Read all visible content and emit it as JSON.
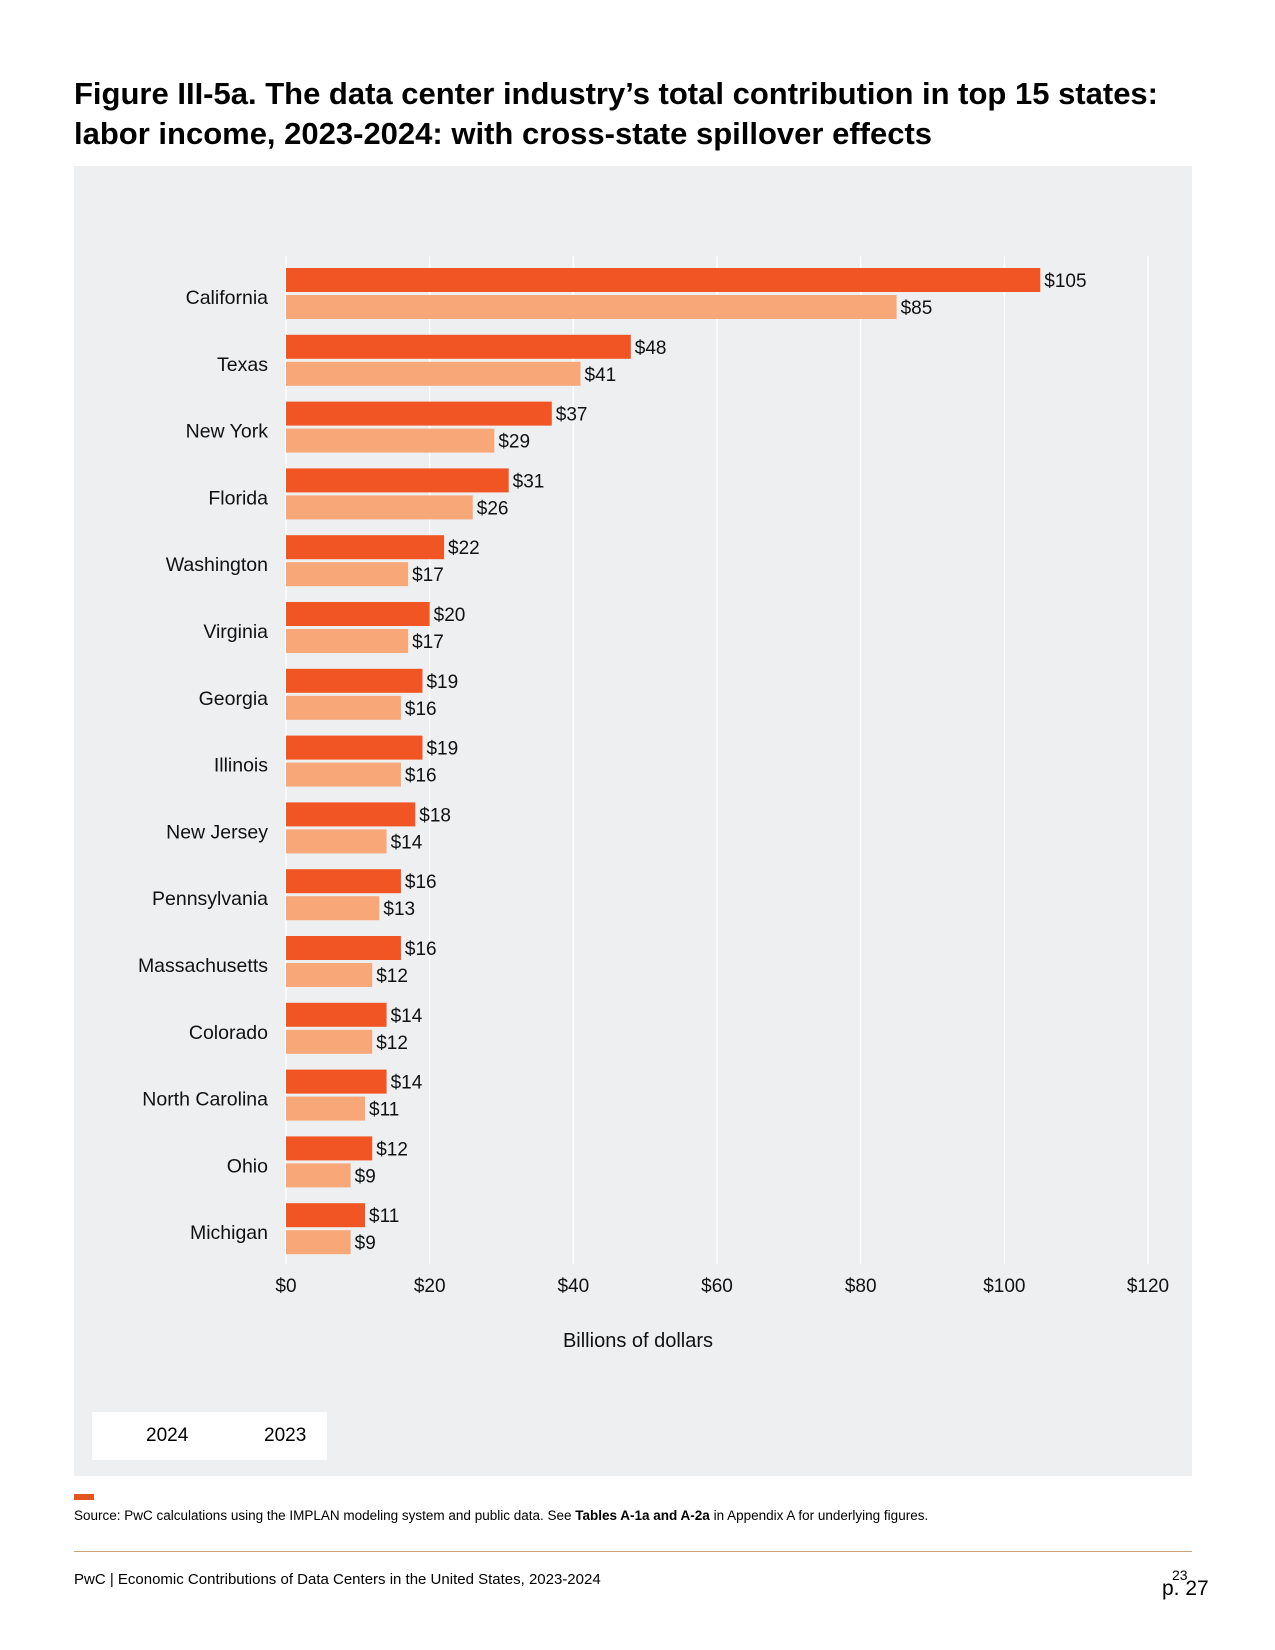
{
  "page": {
    "title": "Figure III-5a. The data center industry’s total contribution in top 15 states: labor income, 2023-2024: with cross-state spillover effects",
    "source": {
      "prefix": "Source: PwC calculations using the IMPLAN modeling system and public data. See ",
      "bold": "Tables A-1a and A-2a",
      "suffix": " in Appendix A for underlying figures."
    },
    "footer": "PwC | Economic Contributions of Data Centers in the United States, 2023-2024",
    "page_number": "23",
    "page_tag": "p. 27"
  },
  "colors": {
    "series_2024": "#f05523",
    "series_2023": "#f8a878",
    "panel_background": "#eeeff0",
    "rule": "#c8a27a",
    "accent": "#e3561f"
  },
  "chart_data": {
    "type": "bar",
    "orientation": "horizontal",
    "categories": [
      "California",
      "Texas",
      "New York",
      "Florida",
      "Washington",
      "Virginia",
      "Georgia",
      "Illinois",
      "New Jersey",
      "Pennsylvania",
      "Massachusetts",
      "Colorado",
      "North Carolina",
      "Ohio",
      "Michigan"
    ],
    "series": [
      {
        "name": "2024",
        "values": [
          105,
          48,
          37,
          31,
          22,
          20,
          19,
          19,
          18,
          16,
          16,
          14,
          14,
          12,
          11
        ],
        "labels": [
          "$105",
          "$48",
          "$37",
          "$31",
          "$22",
          "$20",
          "$19",
          "$19",
          "$18",
          "$16",
          "$16",
          "$14",
          "$14",
          "$12",
          "$11"
        ]
      },
      {
        "name": "2023",
        "values": [
          85,
          41,
          29,
          26,
          17,
          17,
          16,
          16,
          14,
          13,
          12,
          12,
          11,
          9,
          9
        ],
        "labels": [
          "$85",
          "$41",
          "$29",
          "$26",
          "$17",
          "$17",
          "$16",
          "$16",
          "$14",
          "$13",
          "$12",
          "$12",
          "$11",
          "$9",
          "$9"
        ]
      }
    ],
    "xlabel": "Billions of dollars",
    "ylabel": "",
    "xlim": [
      0,
      120
    ],
    "xticks": [
      0,
      20,
      40,
      60,
      80,
      100,
      120
    ],
    "xtick_labels": [
      "$0",
      "$20",
      "$40",
      "$60",
      "$80",
      "$100",
      "$120"
    ],
    "grid": "vertical",
    "legend": "bottom-left"
  }
}
